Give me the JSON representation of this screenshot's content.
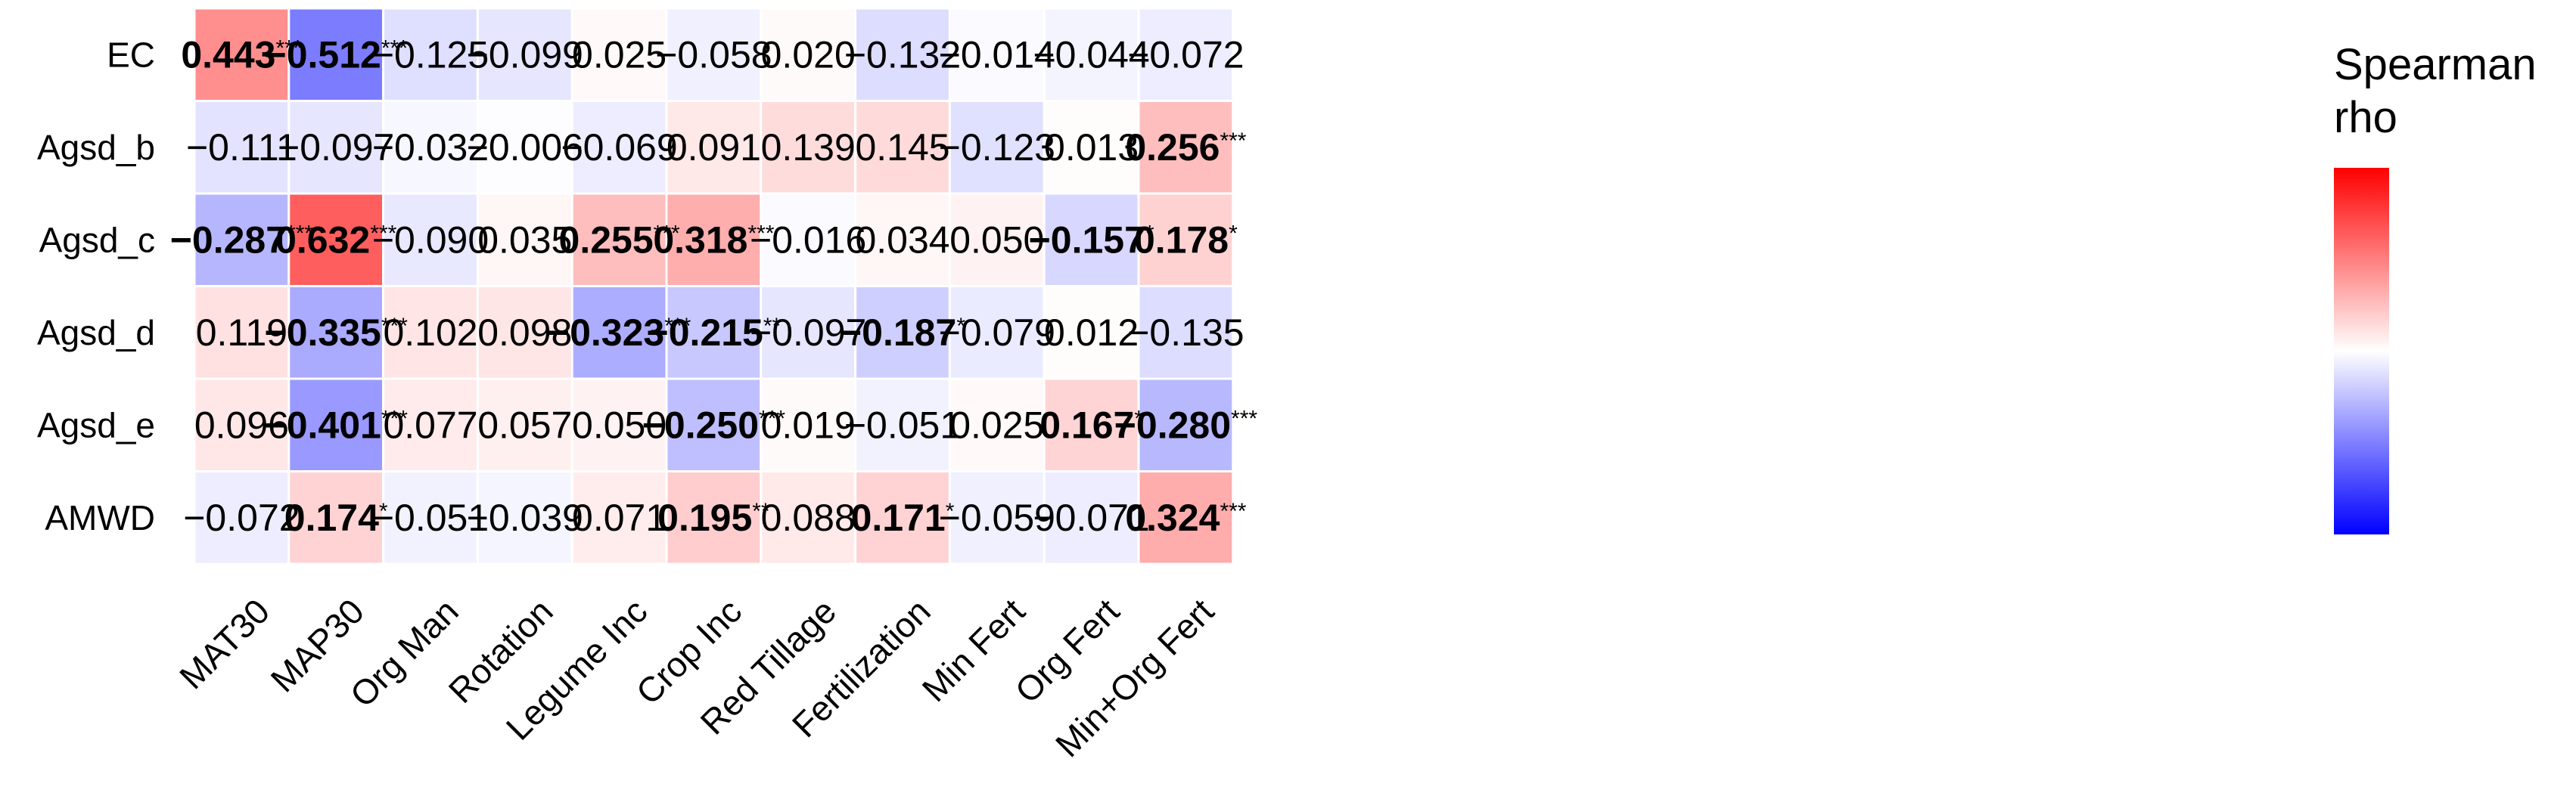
{
  "chart_data": {
    "type": "heatmap",
    "title": "",
    "xlabel": "",
    "ylabel": "",
    "rows": [
      "EC",
      "Agsd_b",
      "Agsd_c",
      "Agsd_d",
      "Agsd_e",
      "AMWD"
    ],
    "columns": [
      "MAT30",
      "MAP30",
      "Org Man",
      "Rotation",
      "Legume Inc",
      "Crop Inc",
      "Red Tillage",
      "Fertilization",
      "Min Fert",
      "Org Fert",
      "Min+Org Fert"
    ],
    "values": [
      [
        0.443,
        -0.512,
        -0.125,
        -0.099,
        0.025,
        -0.058,
        0.02,
        -0.132,
        -0.014,
        -0.044,
        -0.072
      ],
      [
        -0.111,
        -0.097,
        -0.032,
        -0.006,
        -0.069,
        0.091,
        0.139,
        0.145,
        -0.123,
        0.013,
        0.256
      ],
      [
        -0.287,
        0.632,
        -0.09,
        0.035,
        0.255,
        0.318,
        -0.016,
        0.034,
        0.05,
        -0.157,
        0.178
      ],
      [
        0.119,
        -0.335,
        0.102,
        0.098,
        -0.323,
        -0.215,
        -0.097,
        -0.187,
        -0.079,
        0.012,
        -0.135
      ],
      [
        0.096,
        -0.401,
        0.077,
        0.057,
        0.05,
        -0.25,
        0.019,
        -0.051,
        0.025,
        0.167,
        -0.28
      ],
      [
        -0.072,
        0.174,
        -0.051,
        -0.039,
        0.071,
        0.195,
        0.088,
        0.171,
        -0.059,
        -0.071,
        0.324
      ]
    ],
    "labels": [
      [
        "0.443",
        "−0.512",
        "−0.125",
        "−0.099",
        "0.025",
        "−0.058",
        "0.020",
        "−0.132",
        "−0.014",
        "−0.044",
        "−0.072"
      ],
      [
        "−0.111",
        "−0.097",
        "−0.032",
        "−0.006",
        "−0.069",
        "0.091",
        "0.139",
        "0.145",
        "−0.123",
        "0.013",
        "0.256"
      ],
      [
        "−0.287",
        "0.632",
        "−0.090",
        "0.035",
        "0.255",
        "0.318",
        "−0.016",
        "0.034",
        "0.050",
        "−0.157",
        "0.178"
      ],
      [
        "0.119",
        "−0.335",
        "0.102",
        "0.098",
        "−0.323",
        "−0.215",
        "−0.097",
        "−0.187",
        "−0.079",
        "0.012",
        "−0.135"
      ],
      [
        "0.096",
        "−0.401",
        "0.077",
        "0.057",
        "0.050",
        "−0.250",
        "0.019",
        "−0.051",
        "0.025",
        "0.167",
        "−0.280"
      ],
      [
        "−0.072",
        "0.174",
        "−0.051",
        "−0.039",
        "0.071",
        "0.195",
        "0.088",
        "0.171",
        "−0.059",
        "−0.071",
        "0.324"
      ]
    ],
    "significance": [
      [
        "***",
        "***",
        "",
        "",
        "",
        "",
        "",
        "",
        "",
        "",
        ""
      ],
      [
        "",
        "",
        "",
        "",
        "",
        "",
        "",
        "",
        "",
        "",
        "***"
      ],
      [
        "***",
        "***",
        "",
        "",
        "***",
        "***",
        "",
        "",
        "",
        "*",
        "*"
      ],
      [
        "",
        "***",
        "",
        "",
        "***",
        "**",
        "",
        "*",
        "",
        "",
        ""
      ],
      [
        "",
        "***",
        "",
        "",
        "",
        "***",
        "",
        "",
        "",
        "*",
        "***"
      ],
      [
        "",
        "*",
        "",
        "",
        "",
        "**",
        "",
        "*",
        "",
        "",
        "***"
      ]
    ],
    "legend": {
      "title_lines": [
        "Spearman",
        "rho"
      ],
      "range": [
        -1,
        1
      ],
      "low_color": "#0000FF",
      "mid_color": "#FFFFFF",
      "high_color": "#FF0000",
      "placement": "right"
    }
  }
}
